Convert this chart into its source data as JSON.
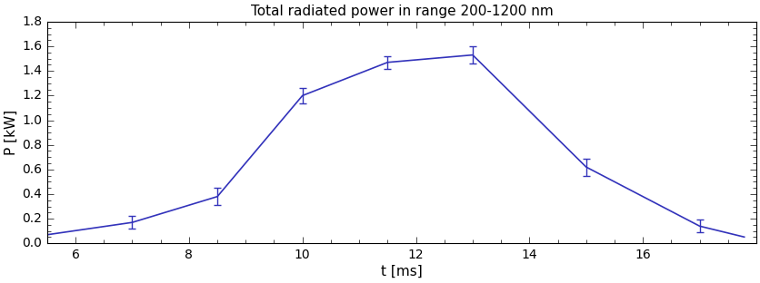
{
  "title": "Total radiated power in range 200-1200 nm",
  "xlabel": "t [ms]",
  "ylabel": "P [kW]",
  "x": [
    5.5,
    7.0,
    8.5,
    10.0,
    11.5,
    13.0,
    15.0,
    17.0,
    17.8
  ],
  "y": [
    0.07,
    0.17,
    0.38,
    1.2,
    1.47,
    1.53,
    0.62,
    0.14,
    0.05
  ],
  "yerr": [
    0.0,
    0.05,
    0.07,
    0.06,
    0.05,
    0.07,
    0.07,
    0.05,
    0.0
  ],
  "has_errorbar": [
    false,
    true,
    true,
    true,
    true,
    true,
    true,
    true,
    false
  ],
  "line_color": "#3333bb",
  "xlim": [
    5.5,
    18.0
  ],
  "ylim": [
    0.0,
    1.8
  ],
  "xticks": [
    6,
    8,
    10,
    12,
    14,
    16
  ],
  "yticks": [
    0.0,
    0.2,
    0.4,
    0.6,
    0.8,
    1.0,
    1.2,
    1.4,
    1.6,
    1.8
  ],
  "title_fontsize": 11,
  "label_fontsize": 11,
  "tick_fontsize": 10,
  "figsize": [
    8.37,
    3.12
  ],
  "dpi": 100
}
